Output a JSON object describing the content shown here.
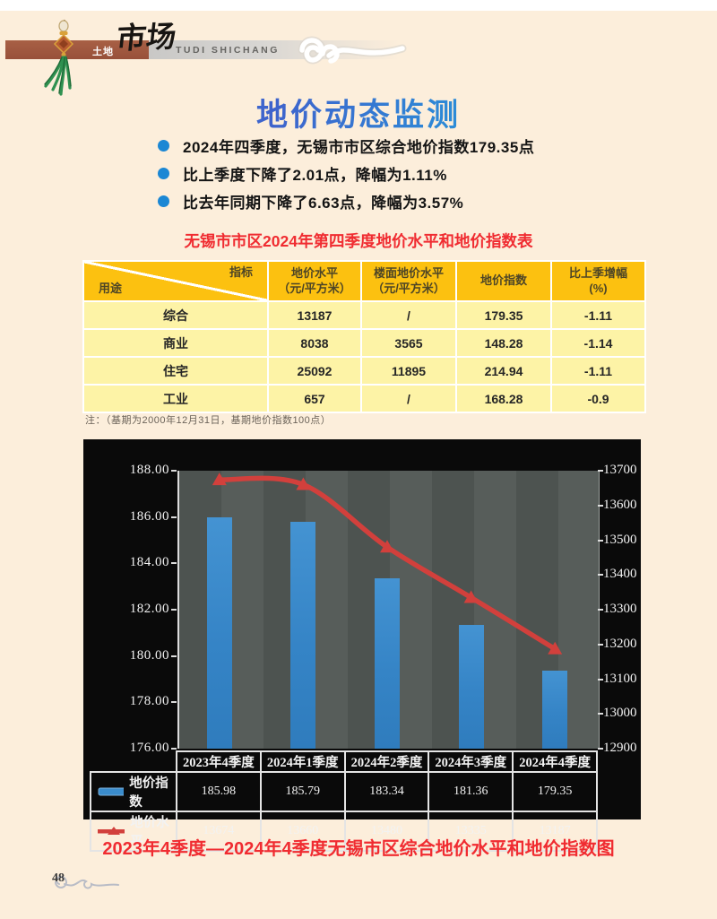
{
  "header": {
    "brand_cn_small": "土地",
    "brand_cn_calligraphy": "市场",
    "brand_en": "TUDI SHICHANG"
  },
  "title": "地价动态监测",
  "bullets": [
    "2024年四季度，无锡市市区综合地价指数179.35点",
    "比上季度下降了2.01点，降幅为1.11%",
    "比去年同期下降了6.63点，降幅为3.57%"
  ],
  "table": {
    "title": "无锡市市区2024年第四季度地价水平和地价指数表",
    "corner": {
      "top_right": "指标",
      "bottom_left": "用途"
    },
    "columns": [
      {
        "l1": "地价水平",
        "l2": "（元/平方米）"
      },
      {
        "l1": "楼面地价水平",
        "l2": "（元/平方米）"
      },
      {
        "l1": "地价指数",
        "l2": ""
      },
      {
        "l1": "比上季增幅",
        "l2": "(%)"
      }
    ],
    "rows": [
      [
        "综合",
        "13187",
        "/",
        "179.35",
        "-1.11"
      ],
      [
        "商业",
        "8038",
        "3565",
        "148.28",
        "-1.14"
      ],
      [
        "住宅",
        "25092",
        "11895",
        "214.94",
        "-1.11"
      ],
      [
        "工业",
        "657",
        "/",
        "168.28",
        "-0.9"
      ]
    ],
    "note": "注：（基期为2000年12月31日，基期地价指数100点）"
  },
  "chart_data": {
    "type": "bar+line",
    "categories": [
      "2023年4季度",
      "2024年1季度",
      "2024年2季度",
      "2024年3季度",
      "2024年4季度"
    ],
    "series": [
      {
        "name": "地价指数",
        "type": "bar",
        "axis": "left",
        "color": "#3a8ccc",
        "values": [
          185.98,
          185.79,
          183.34,
          181.36,
          179.35
        ]
      },
      {
        "name": "地价水平",
        "type": "line",
        "axis": "right",
        "color": "#d2403c",
        "values": [
          13674,
          13660,
          13480,
          13335,
          13187
        ]
      }
    ],
    "left_axis": {
      "min": 176,
      "max": 188,
      "step": 2,
      "decimals": 2
    },
    "right_axis": {
      "min": 12900,
      "max": 13700,
      "step": 100,
      "decimals": 0
    },
    "grid": false,
    "legend_position": "bottom-table",
    "chart_bg": "#0a0a0a",
    "plot_bg": "#515754"
  },
  "caption": "2023年4季度—2024年4季度无锡市区综合地价水平和地价指数图",
  "page_number": "48"
}
